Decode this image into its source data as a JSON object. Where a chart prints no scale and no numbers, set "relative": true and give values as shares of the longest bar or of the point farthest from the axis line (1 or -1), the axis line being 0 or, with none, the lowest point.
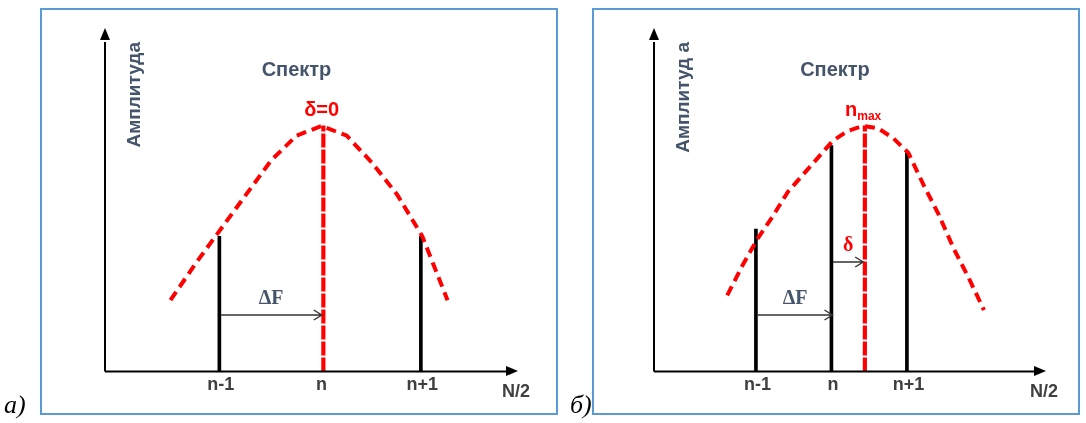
{
  "chart_data": [
    {
      "type": "bar",
      "title": "Спектр",
      "ylabel": "Амплитуда",
      "xlabel": "N/2",
      "relative": true,
      "tick_labels": "x",
      "categories": [
        null,
        null,
        "n-1",
        null,
        null,
        null,
        "n",
        null,
        null,
        null,
        "n+1",
        null
      ],
      "series": [
        {
          "color": "#000000",
          "values": [
            null,
            null,
            0.55,
            null,
            null,
            null,
            null,
            null,
            null,
            null,
            0.55,
            null
          ]
        },
        {
          "name": "δ=0",
          "color": "#ff0000",
          "line_style": "dashed",
          "values": [
            null,
            null,
            null,
            null,
            null,
            null,
            1,
            null,
            null,
            null,
            null,
            null
          ]
        },
        {
          "type": "line",
          "color": "#ff0000",
          "line_style": "dashed",
          "values": [
            0.29,
            0.44,
            0.58,
            0.72,
            0.86,
            0.96,
            1,
            0.96,
            0.85,
            0.72,
            0.55,
            0.29
          ]
        }
      ],
      "annotations": [
        "ΔF",
        "а)"
      ]
    },
    {
      "type": "bar",
      "title": "Спектр",
      "ylabel": "Амплитуд а",
      "xlabel": "N/2",
      "relative": true,
      "tick_labels": "x",
      "categories": [
        null,
        null,
        "n-1",
        null,
        null,
        null,
        null,
        "n",
        null,
        null,
        null,
        null,
        "n+1",
        null,
        null,
        null,
        null,
        null
      ],
      "series": [
        {
          "color": "#000000",
          "values": [
            null,
            null,
            0.58,
            null,
            null,
            null,
            null,
            0.92,
            null,
            null,
            null,
            null,
            0.89,
            null,
            null,
            null,
            null,
            null
          ]
        },
        {
          "name": "n$_{max}$",
          "color": "#ff0000",
          "line_style": "dashed",
          "values": [
            null,
            null,
            null,
            null,
            null,
            null,
            null,
            null,
            null,
            1,
            null,
            null,
            null,
            null,
            null,
            null,
            null,
            null
          ]
        },
        {
          "type": "line",
          "color": "#ff0000",
          "line_style": "dashed",
          "values": [
            0.31,
            0.43,
            0.54,
            0.63,
            0.73,
            0.8,
            0.87,
            0.94,
            0.98,
            1,
            0.99,
            0.95,
            0.89,
            0.76,
            0.64,
            0.5,
            0.38,
            0.25
          ]
        }
      ],
      "annotations": [
        "δ",
        "ΔF",
        "б)"
      ]
    }
  ]
}
